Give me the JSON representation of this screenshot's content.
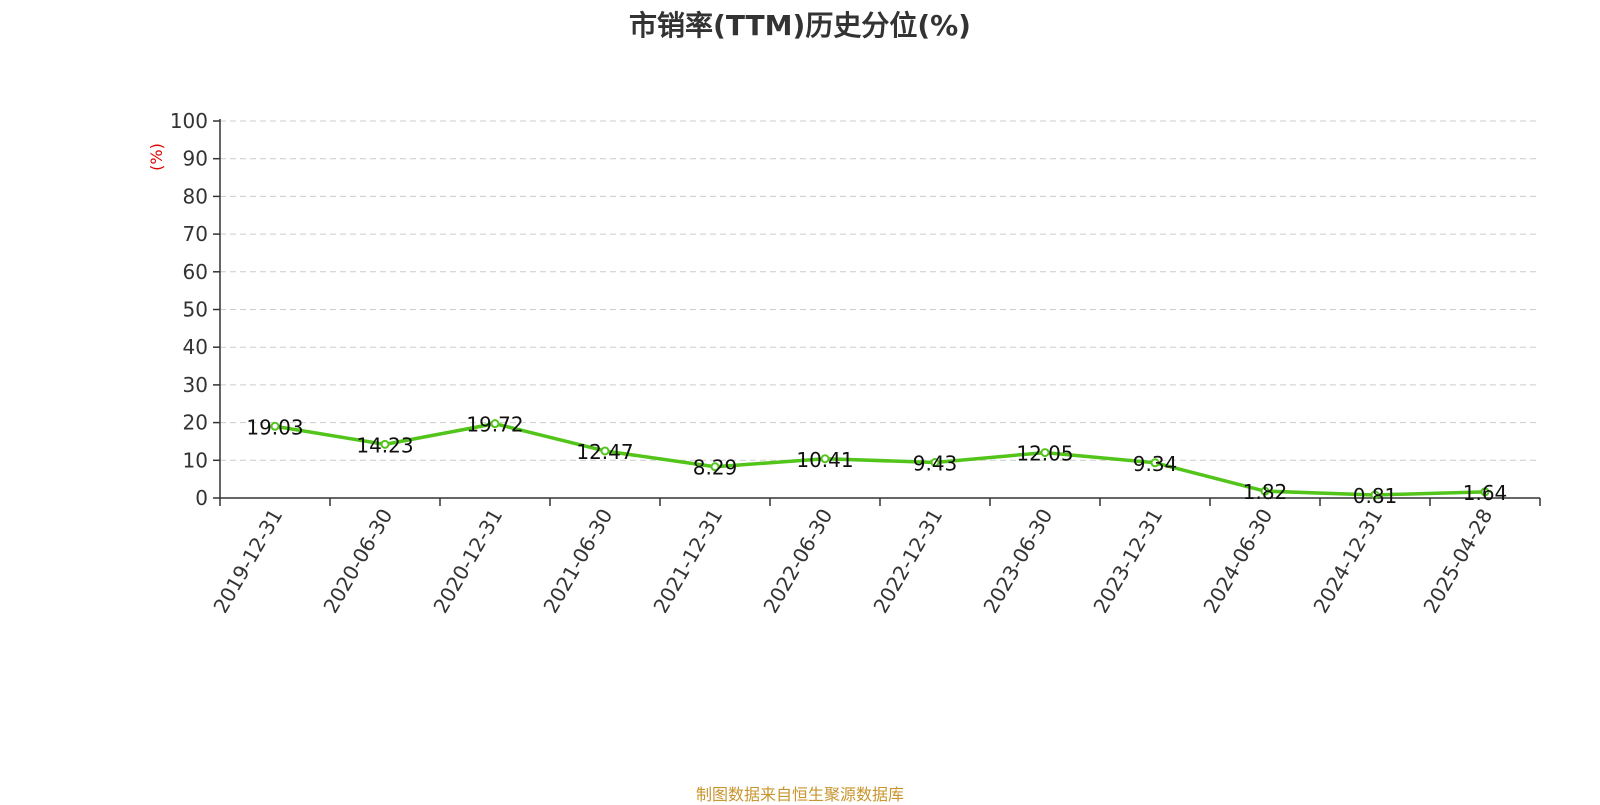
{
  "chart_data": {
    "type": "line",
    "title": "市销率(TTM)历史分位(%)",
    "ylabel": "(%)",
    "ylim": [
      0,
      100
    ],
    "yticks": [
      0,
      10,
      20,
      30,
      40,
      50,
      60,
      70,
      80,
      90,
      100
    ],
    "grid": true,
    "categories": [
      "2019-12-31",
      "2020-06-30",
      "2020-12-31",
      "2021-06-30",
      "2021-12-31",
      "2022-06-30",
      "2022-12-31",
      "2023-06-30",
      "2023-12-31",
      "2024-06-30",
      "2024-12-31",
      "2025-04-28"
    ],
    "values": [
      19.03,
      14.23,
      19.72,
      12.47,
      8.29,
      10.41,
      9.43,
      12.05,
      9.34,
      1.82,
      0.81,
      1.64
    ],
    "data_labels": [
      "19.03",
      "14.23",
      "19.72",
      "12.47",
      "8.29",
      "10.41",
      "9.43",
      "12.05",
      "9.34",
      "1.82",
      "0.81",
      "1.64"
    ],
    "line_color": "#52c41a",
    "source": "制图数据来自恒生聚源数据库"
  }
}
